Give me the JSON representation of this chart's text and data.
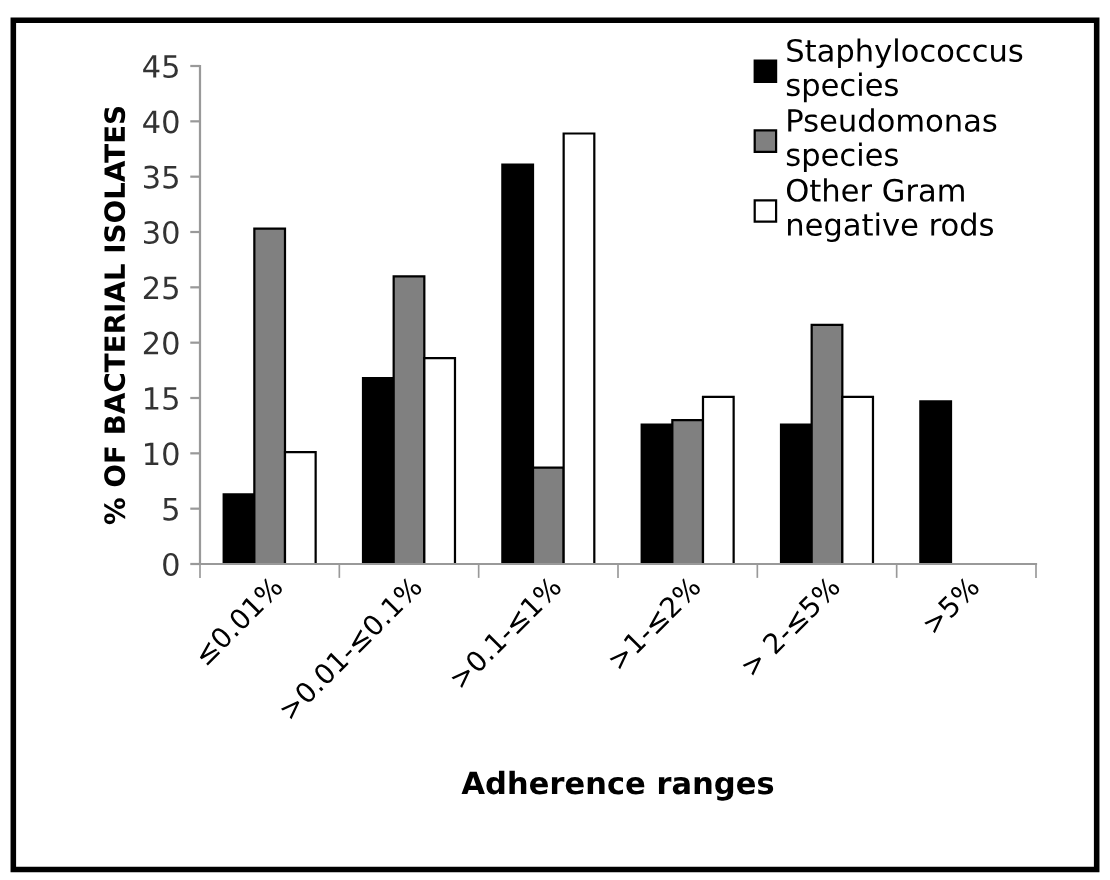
{
  "chart_data": {
    "type": "bar",
    "xlabel": "Adherence ranges",
    "ylabel": "% OF BACTERIAL ISOLATES",
    "categories": [
      "≤0.01%",
      ">0.01-≤0.1%",
      ">0.1-≤1%",
      ">1-≤2%",
      "> 2-≤5%",
      ">5%"
    ],
    "series": [
      {
        "name": "Staphylococcus\nspecies",
        "color": "#000000",
        "values": [
          6.3,
          16.8,
          36.1,
          12.6,
          12.6,
          14.7
        ]
      },
      {
        "name": "Pseudomonas\nspecies",
        "color": "#808080",
        "values": [
          30.3,
          26.0,
          8.7,
          13.0,
          21.6,
          null
        ]
      },
      {
        "name": "Other Gram\nnegative rods",
        "color": "#ffffff",
        "values": [
          10.1,
          18.6,
          38.9,
          15.1,
          15.1,
          null
        ]
      }
    ],
    "ylim": [
      0,
      45
    ],
    "yticks": [
      0,
      5,
      10,
      15,
      20,
      25,
      30,
      35,
      40,
      45
    ],
    "grid": false,
    "legend": "top right"
  }
}
